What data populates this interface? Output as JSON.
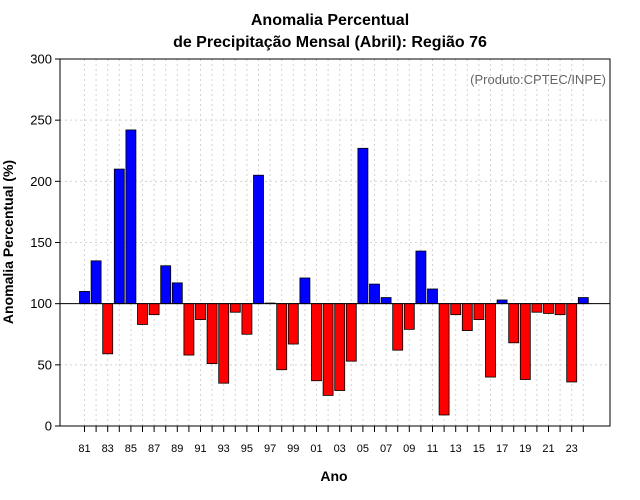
{
  "chart_data": {
    "type": "bar",
    "title_line1": "Anomalia Percentual",
    "title_line2": "de Precipitação Mensal (Abril): Região 76",
    "xlabel": "Ano",
    "ylabel": "Anomalia Percentual (%)",
    "annotation": "(Produto:CPTEC/INPE)",
    "ylim": [
      0,
      300
    ],
    "yticks": [
      0,
      50,
      100,
      150,
      200,
      250,
      300
    ],
    "baseline": 100,
    "grid": true,
    "categories": [
      "81",
      "82",
      "83",
      "84",
      "85",
      "86",
      "87",
      "88",
      "89",
      "90",
      "91",
      "92",
      "93",
      "94",
      "95",
      "96",
      "97",
      "98",
      "99",
      "00",
      "01",
      "02",
      "03",
      "04",
      "05",
      "06",
      "07",
      "08",
      "09",
      "10",
      "11",
      "12",
      "13",
      "14",
      "15",
      "16",
      "17",
      "18",
      "19",
      "20",
      "21",
      "22",
      "23",
      "24"
    ],
    "xtick_labels": [
      "81",
      "83",
      "85",
      "87",
      "89",
      "91",
      "93",
      "95",
      "97",
      "99",
      "01",
      "03",
      "05",
      "07",
      "09",
      "11",
      "13",
      "15",
      "17",
      "19",
      "21",
      "23"
    ],
    "values": [
      110,
      135,
      59,
      210,
      242,
      83,
      91,
      131,
      117,
      58,
      87,
      51,
      35,
      93,
      75,
      205,
      100.5,
      46,
      67,
      121,
      37,
      25,
      29,
      53,
      227,
      116,
      105,
      62,
      79,
      143,
      112,
      9,
      91,
      78,
      87,
      40,
      103,
      68,
      38,
      93,
      92,
      91,
      36,
      105
    ],
    "colors": {
      "above": "#0000ff",
      "below": "#ff0000",
      "baseline": "#000000",
      "grid": "#d3d3d3",
      "border": "#000000"
    }
  }
}
